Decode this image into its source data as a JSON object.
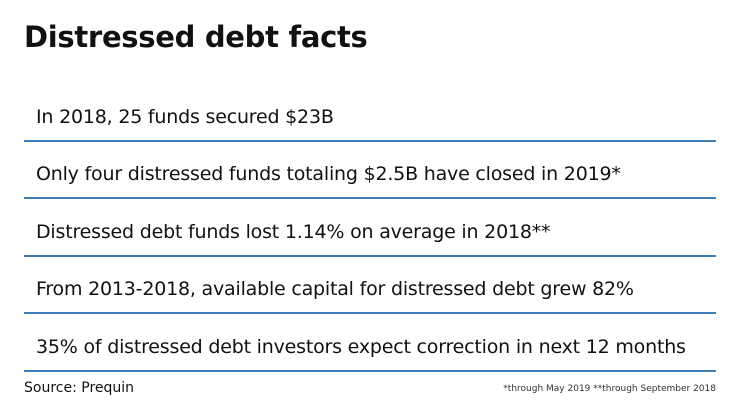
{
  "header": {
    "title": "Distressed debt facts"
  },
  "facts": [
    "In 2018, 25 funds secured $23B",
    "Only four distressed funds totaling $2.5B have closed in 2019*",
    "Distressed debt funds lost 1.14% on average in 2018**",
    "From 2013-2018, available capital for distressed debt grew 82%",
    "35% of distressed debt investors expect correction in next 12 months"
  ],
  "footer": {
    "source": "Source: Prequin",
    "note": "*through May 2019 **through September 2018"
  }
}
